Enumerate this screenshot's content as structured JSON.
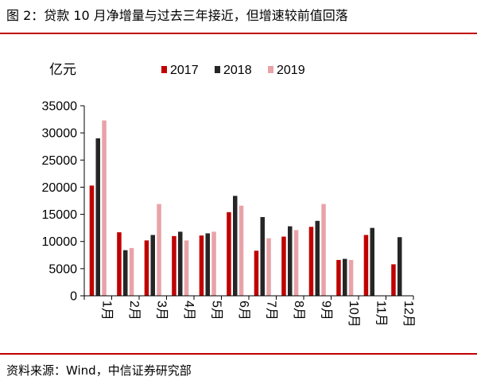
{
  "figure_title": "图 2：贷款 10 月净增量与过去三年接近，但增速较前值回落",
  "source_text": "资料来源：Wind，中信证券研究部",
  "colors": {
    "rule": "#c00000",
    "s2017": "#c00000",
    "s2018": "#262626",
    "s2019": "#e8a3a8",
    "axis": "#000000"
  },
  "chart_data": {
    "type": "bar",
    "title": "",
    "ylabel": "亿元",
    "xlabel": "",
    "ylim": [
      0,
      35000
    ],
    "yticks": [
      "0",
      "5000",
      "10000",
      "15000",
      "20000",
      "25000",
      "30000",
      "35000"
    ],
    "grid": false,
    "legend_position": "top",
    "categories": [
      "1月",
      "2月",
      "3月",
      "4月",
      "5月",
      "6月",
      "7月",
      "8月",
      "9月",
      "10月",
      "11月",
      "12月"
    ],
    "series": [
      {
        "name": "2017",
        "color": "#c00000",
        "values": [
          20300,
          11700,
          10200,
          11000,
          11100,
          15400,
          8300,
          10900,
          12700,
          6600,
          11200,
          5800
        ]
      },
      {
        "name": "2018",
        "color": "#262626",
        "values": [
          29000,
          8400,
          11200,
          11800,
          11500,
          18400,
          14500,
          12800,
          13800,
          6800,
          12500,
          10800
        ]
      },
      {
        "name": "2019",
        "color": "#e8a3a8",
        "values": [
          32300,
          8800,
          16900,
          10200,
          11800,
          16600,
          10600,
          12100,
          16900,
          6600,
          null,
          null
        ]
      }
    ]
  }
}
